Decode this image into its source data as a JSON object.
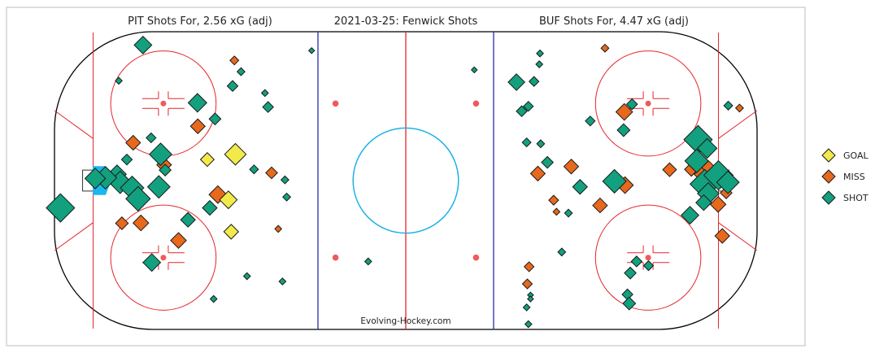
{
  "chart_data": {
    "type": "scatter",
    "titles": {
      "left": "PIT Shots For, 2.56 xG (adj)",
      "center": "2021-03-25:  Fenwick Shots",
      "right": "BUF Shots For, 4.47 xG (adj)"
    },
    "credit": "Evolving-Hockey.com",
    "xlim": [
      -100,
      100
    ],
    "ylim": [
      -42.5,
      42.5
    ],
    "legend": {
      "placement": "right",
      "entries": [
        {
          "key": "goal",
          "label": "GOAL",
          "color": "#f2ea4a"
        },
        {
          "key": "miss",
          "label": "MISS",
          "color": "#e8681c"
        },
        {
          "key": "shot",
          "label": "SHOT",
          "color": "#12a07e"
        }
      ]
    },
    "colors": {
      "board": "#000000",
      "red_line": "#e3262b",
      "blue_line": "#2a2ab0",
      "center_circle": "#1db2e6",
      "crease": "#1cb7ec",
      "faceoff_dot": "#f05a5a",
      "frame": "#bdbdbd"
    },
    "series": [
      {
        "name": "GOAL",
        "type": "goal",
        "points": [
          {
            "x": -48.5,
            "y": 7.5,
            "size": 1.1
          },
          {
            "x": -56.5,
            "y": 6.0,
            "size": 0.7
          },
          {
            "x": -50.5,
            "y": -5.5,
            "size": 0.9
          },
          {
            "x": -49.7,
            "y": -14.6,
            "size": 0.75
          }
        ]
      },
      {
        "name": "MISS",
        "type": "miss",
        "points": [
          {
            "x": -48.8,
            "y": 34.3,
            "size": 0.45
          },
          {
            "x": -59.2,
            "y": 15.5,
            "size": 0.75
          },
          {
            "x": -77.6,
            "y": 10.8,
            "size": 0.75
          },
          {
            "x": -68.8,
            "y": 4.5,
            "size": 0.75
          },
          {
            "x": -38.2,
            "y": 2.2,
            "size": 0.6
          },
          {
            "x": -53.5,
            "y": -4.0,
            "size": 0.9
          },
          {
            "x": -80.8,
            "y": -12.2,
            "size": 0.65
          },
          {
            "x": -75.4,
            "y": -12.1,
            "size": 0.8
          },
          {
            "x": -64.7,
            "y": -17.1,
            "size": 0.8
          },
          {
            "x": -36.3,
            "y": -13.8,
            "size": 0.35
          },
          {
            "x": 56.7,
            "y": 37.8,
            "size": 0.4
          },
          {
            "x": 62.2,
            "y": 19.6,
            "size": 0.85
          },
          {
            "x": 95.0,
            "y": 20.7,
            "size": 0.4
          },
          {
            "x": 47.1,
            "y": 4.0,
            "size": 0.75
          },
          {
            "x": 37.6,
            "y": 2.0,
            "size": 0.75
          },
          {
            "x": 75.1,
            "y": 3.1,
            "size": 0.7
          },
          {
            "x": 84.3,
            "y": 1.8,
            "size": 0.8
          },
          {
            "x": 81.3,
            "y": 3.2,
            "size": 0.7
          },
          {
            "x": 86.2,
            "y": 3.7,
            "size": 0.7
          },
          {
            "x": 91.2,
            "y": -3.5,
            "size": 0.6
          },
          {
            "x": 62.4,
            "y": -1.3,
            "size": 0.85
          },
          {
            "x": 42.1,
            "y": -5.6,
            "size": 0.5
          },
          {
            "x": 55.3,
            "y": -7.1,
            "size": 0.75
          },
          {
            "x": 88.9,
            "y": -6.8,
            "size": 0.8
          },
          {
            "x": 42.9,
            "y": -8.9,
            "size": 0.35
          },
          {
            "x": 90.1,
            "y": -15.8,
            "size": 0.75
          },
          {
            "x": 35.1,
            "y": -24.6,
            "size": 0.5
          },
          {
            "x": 34.6,
            "y": -29.5,
            "size": 0.5
          }
        ]
      },
      {
        "name": "SHOT",
        "type": "shot",
        "points": [
          {
            "x": -74.8,
            "y": 38.7,
            "size": 0.9
          },
          {
            "x": -46.9,
            "y": 31.1,
            "size": 0.4
          },
          {
            "x": -49.3,
            "y": 27.0,
            "size": 0.55
          },
          {
            "x": -40.1,
            "y": 25.0,
            "size": 0.35
          },
          {
            "x": -39.2,
            "y": 21.0,
            "size": 0.55
          },
          {
            "x": -81.7,
            "y": 28.5,
            "size": 0.35
          },
          {
            "x": -59.3,
            "y": 22.2,
            "size": 0.95
          },
          {
            "x": -54.3,
            "y": 17.6,
            "size": 0.6
          },
          {
            "x": -72.5,
            "y": 12.2,
            "size": 0.5
          },
          {
            "x": -69.8,
            "y": 7.5,
            "size": 1.15
          },
          {
            "x": -79.4,
            "y": 6.0,
            "size": 0.55
          },
          {
            "x": -82.2,
            "y": 1.8,
            "size": 0.95
          },
          {
            "x": -81.3,
            "y": -0.5,
            "size": 1.15
          },
          {
            "x": -85.5,
            "y": 0.8,
            "size": 1.15
          },
          {
            "x": -88.4,
            "y": 0.6,
            "size": 1.05
          },
          {
            "x": -77.9,
            "y": -2.1,
            "size": 1.2
          },
          {
            "x": -76.2,
            "y": -5.2,
            "size": 1.25
          },
          {
            "x": -70.3,
            "y": -1.8,
            "size": 1.15
          },
          {
            "x": -68.5,
            "y": 3.0,
            "size": 0.6
          },
          {
            "x": -62.0,
            "y": -11.2,
            "size": 0.75
          },
          {
            "x": -55.8,
            "y": -7.8,
            "size": 0.75
          },
          {
            "x": -43.2,
            "y": 3.2,
            "size": 0.45
          },
          {
            "x": -34.4,
            "y": 0.2,
            "size": 0.4
          },
          {
            "x": -33.9,
            "y": -4.7,
            "size": 0.4
          },
          {
            "x": -98.3,
            "y": -7.8,
            "size": 1.45
          },
          {
            "x": -72.3,
            "y": -23.4,
            "size": 0.9
          },
          {
            "x": -54.7,
            "y": -33.8,
            "size": 0.35
          },
          {
            "x": -45.2,
            "y": -27.3,
            "size": 0.35
          },
          {
            "x": -35.1,
            "y": -28.8,
            "size": 0.35
          },
          {
            "x": -26.8,
            "y": 37.1,
            "size": 0.3
          },
          {
            "x": -10.7,
            "y": -23.1,
            "size": 0.35
          },
          {
            "x": 19.5,
            "y": 31.6,
            "size": 0.3
          },
          {
            "x": 38.2,
            "y": 36.3,
            "size": 0.35
          },
          {
            "x": 38.0,
            "y": 33.2,
            "size": 0.35
          },
          {
            "x": 31.5,
            "y": 28.1,
            "size": 0.85
          },
          {
            "x": 36.5,
            "y": 28.3,
            "size": 0.5
          },
          {
            "x": 34.9,
            "y": 21.2,
            "size": 0.5
          },
          {
            "x": 33.0,
            "y": 19.8,
            "size": 0.55
          },
          {
            "x": 52.5,
            "y": 17.0,
            "size": 0.5
          },
          {
            "x": 64.4,
            "y": 21.8,
            "size": 0.55
          },
          {
            "x": 62.0,
            "y": 14.4,
            "size": 0.65
          },
          {
            "x": 34.4,
            "y": 10.9,
            "size": 0.45
          },
          {
            "x": 38.4,
            "y": 10.5,
            "size": 0.4
          },
          {
            "x": 40.3,
            "y": 5.2,
            "size": 0.6
          },
          {
            "x": 59.4,
            "y": -0.2,
            "size": 1.2
          },
          {
            "x": 49.6,
            "y": -1.8,
            "size": 0.75
          },
          {
            "x": 91.8,
            "y": 21.4,
            "size": 0.45
          },
          {
            "x": 83.2,
            "y": 11.7,
            "size": 1.45
          },
          {
            "x": 85.8,
            "y": 9.2,
            "size": 1.0
          },
          {
            "x": 82.8,
            "y": 5.6,
            "size": 1.2
          },
          {
            "x": 85.1,
            "y": -1.0,
            "size": 1.5
          },
          {
            "x": 89.0,
            "y": 1.5,
            "size": 1.5
          },
          {
            "x": 91.7,
            "y": -0.5,
            "size": 1.15
          },
          {
            "x": 86.1,
            "y": -3.7,
            "size": 1.1
          },
          {
            "x": 84.8,
            "y": -6.3,
            "size": 0.8
          },
          {
            "x": 80.9,
            "y": -9.9,
            "size": 0.9
          },
          {
            "x": 46.3,
            "y": -9.3,
            "size": 0.4
          },
          {
            "x": 44.4,
            "y": -20.4,
            "size": 0.4
          },
          {
            "x": 65.7,
            "y": -23.1,
            "size": 0.55
          },
          {
            "x": 69.1,
            "y": -24.3,
            "size": 0.5
          },
          {
            "x": 63.9,
            "y": -26.4,
            "size": 0.6
          },
          {
            "x": 63.1,
            "y": -32.5,
            "size": 0.55
          },
          {
            "x": 63.6,
            "y": -35.1,
            "size": 0.65
          },
          {
            "x": 35.5,
            "y": -32.7,
            "size": 0.3
          },
          {
            "x": 35.5,
            "y": -33.8,
            "size": 0.3
          },
          {
            "x": 34.4,
            "y": -36.2,
            "size": 0.35
          },
          {
            "x": 34.9,
            "y": -41.0,
            "size": 0.35
          }
        ]
      }
    ]
  }
}
